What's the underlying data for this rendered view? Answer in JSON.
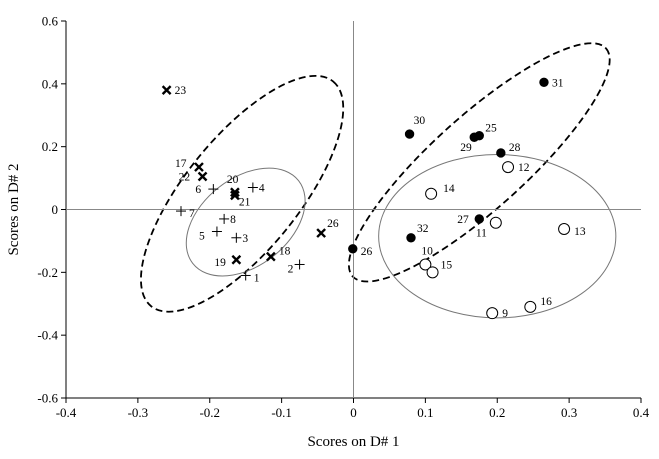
{
  "chart_data": {
    "type": "scatter",
    "xlabel": "Scores on D# 1",
    "ylabel": "Scores on D# 2",
    "xlim": [
      -0.4,
      0.4
    ],
    "ylim": [
      -0.6,
      0.6
    ],
    "x_ticks": [
      "-0.4",
      "-0.3",
      "-0.2",
      "-0.1",
      "0",
      "0.1",
      "0.2",
      "0.3",
      "0.4"
    ],
    "y_ticks": [
      "0.6",
      "0.4",
      "0.2",
      "0",
      "-0.2",
      "-0.4",
      "-0.6"
    ],
    "x_tick_values": [
      -0.4,
      -0.3,
      -0.2,
      -0.1,
      0,
      0.1,
      0.2,
      0.3,
      0.4
    ],
    "y_tick_values": [
      0.6,
      0.4,
      0.2,
      0,
      -0.2,
      -0.4,
      -0.6
    ],
    "reference_lines": {
      "x": 0,
      "y": 0
    },
    "grid": false,
    "legend": "none",
    "series": [
      {
        "marker": "cross-x",
        "points": [
          {
            "label": "23",
            "x": -0.26,
            "y": 0.38
          },
          {
            "label": "17",
            "x": -0.215,
            "y": 0.135
          },
          {
            "label": "22",
            "x": -0.21,
            "y": 0.105
          },
          {
            "label": "20",
            "x": -0.165,
            "y": 0.055
          },
          {
            "label": "21",
            "x": -0.165,
            "y": 0.045
          },
          {
            "label": "19",
            "x": -0.163,
            "y": -0.16
          },
          {
            "label": "18",
            "x": -0.115,
            "y": -0.15
          },
          {
            "label": "26",
            "x": -0.045,
            "y": -0.075
          }
        ]
      },
      {
        "marker": "plus",
        "points": [
          {
            "label": "6",
            "x": -0.195,
            "y": 0.065
          },
          {
            "label": "4",
            "x": -0.14,
            "y": 0.07
          },
          {
            "label": "7",
            "x": -0.24,
            "y": -0.005
          },
          {
            "label": "8",
            "x": -0.18,
            "y": -0.03
          },
          {
            "label": "3",
            "x": -0.163,
            "y": -0.09
          },
          {
            "label": "5",
            "x": -0.19,
            "y": -0.07
          },
          {
            "label": "1",
            "x": -0.15,
            "y": -0.21
          },
          {
            "label": "2",
            "x": -0.075,
            "y": -0.175
          }
        ]
      },
      {
        "marker": "filled-circle",
        "points": [
          {
            "label": "31",
            "x": 0.265,
            "y": 0.405
          },
          {
            "label": "30",
            "x": 0.078,
            "y": 0.24
          },
          {
            "label": "25",
            "x": 0.175,
            "y": 0.235
          },
          {
            "label": "29",
            "x": 0.168,
            "y": 0.23
          },
          {
            "label": "28",
            "x": 0.205,
            "y": 0.18
          },
          {
            "label": "27",
            "x": 0.175,
            "y": -0.03
          },
          {
            "label": "32",
            "x": 0.08,
            "y": -0.09
          },
          {
            "label": "26",
            "x": -0.001,
            "y": -0.125
          }
        ]
      },
      {
        "marker": "open-circle",
        "points": [
          {
            "label": "12",
            "x": 0.215,
            "y": 0.135
          },
          {
            "label": "14",
            "x": 0.108,
            "y": 0.05
          },
          {
            "label": "11",
            "x": 0.198,
            "y": -0.042
          },
          {
            "label": "13",
            "x": 0.293,
            "y": -0.062
          },
          {
            "label": "10",
            "x": 0.1,
            "y": -0.175
          },
          {
            "label": "15",
            "x": 0.11,
            "y": -0.2
          },
          {
            "label": "16",
            "x": 0.246,
            "y": -0.31
          },
          {
            "label": "9",
            "x": 0.193,
            "y": -0.33
          }
        ]
      }
    ],
    "ellipses": [
      {
        "style": "dashed",
        "center": [
          -0.155,
          0.05
        ],
        "semi_axes": [
          0.28,
          0.11
        ],
        "angle_deg": 51
      },
      {
        "style": "solid",
        "center": [
          -0.15,
          -0.04
        ],
        "semi_axes": [
          0.13,
          0.085
        ],
        "angle_deg": 38
      },
      {
        "style": "dashed",
        "center": [
          0.175,
          0.15
        ],
        "semi_axes": [
          0.33,
          0.09
        ],
        "angle_deg": 42
      },
      {
        "style": "solid",
        "center": [
          0.2,
          -0.085
        ],
        "semi_axes": [
          0.165,
          0.26
        ],
        "angle_deg": 0
      }
    ]
  }
}
